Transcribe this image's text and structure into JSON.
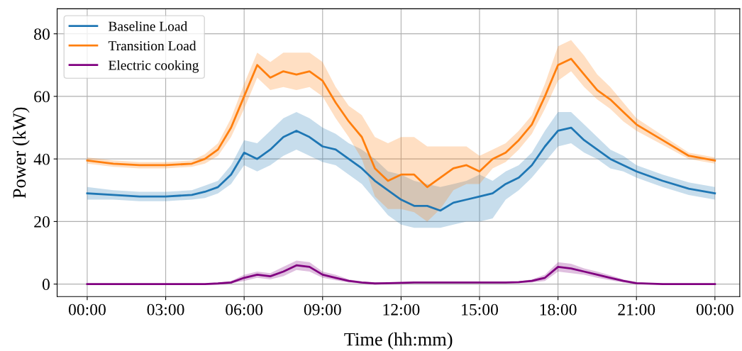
{
  "chart_data": {
    "type": "line",
    "xlabel": "Time (hh:mm)",
    "ylabel": "Power (kW)",
    "x": [
      0,
      1,
      2,
      3,
      4,
      4.5,
      5,
      5.5,
      6,
      6.5,
      7,
      7.5,
      8,
      8.5,
      9,
      9.5,
      10,
      10.5,
      11,
      11.5,
      12,
      12.5,
      13,
      13.5,
      14,
      14.5,
      15,
      15.5,
      16,
      16.5,
      17,
      17.5,
      18,
      18.5,
      19,
      19.5,
      20,
      20.5,
      21,
      22,
      23,
      24
    ],
    "series": [
      {
        "name": "Baseline Load",
        "color": "#1f77b4",
        "values": [
          29,
          28.5,
          28,
          28,
          28.5,
          29.5,
          31,
          35,
          42,
          40,
          43,
          47,
          49,
          47,
          44,
          43,
          40,
          37,
          33,
          30,
          27,
          25,
          25,
          23.5,
          26,
          27,
          28,
          29,
          32,
          34,
          38,
          44,
          49,
          50,
          46,
          43,
          40,
          38,
          36,
          33,
          30.5,
          29
        ],
        "lower": [
          27,
          27,
          26.5,
          26.5,
          27,
          27.5,
          29,
          32,
          38,
          36,
          38,
          41,
          43,
          41,
          39,
          38,
          35,
          32,
          27,
          22,
          19,
          18,
          18,
          18,
          19,
          20,
          20,
          21,
          27,
          30,
          34,
          39,
          44,
          45,
          42,
          40,
          37,
          36,
          34,
          31,
          28.5,
          27
        ],
        "upper": [
          31,
          30,
          29.5,
          29.5,
          30,
          31.5,
          33,
          38,
          46,
          45,
          49,
          53,
          55,
          53,
          50,
          48,
          45,
          43,
          40,
          36,
          35,
          33,
          32,
          31,
          32,
          33,
          35,
          33,
          36,
          38,
          42,
          49,
          55,
          55,
          51,
          47,
          43,
          41,
          38,
          35,
          32.5,
          31
        ]
      },
      {
        "name": "Transition Load",
        "color": "#ff7f0e",
        "values": [
          39.5,
          38.5,
          38,
          38,
          38.5,
          40,
          43,
          50,
          60,
          70,
          66,
          68,
          67,
          68,
          65,
          58,
          52,
          47,
          37,
          33,
          35,
          35,
          31,
          34,
          37,
          38,
          36,
          40,
          42,
          46,
          51,
          60,
          70,
          72,
          67,
          62,
          59,
          55,
          51,
          46,
          41,
          39.5
        ],
        "lower": [
          38.5,
          37.5,
          37,
          37,
          37.5,
          38.5,
          41,
          47,
          56,
          66,
          62,
          63,
          62,
          63,
          60,
          53,
          47,
          40,
          28,
          24,
          24,
          23,
          20,
          24,
          30,
          32,
          32,
          37,
          39,
          43,
          48,
          56,
          65,
          68,
          63,
          59,
          56,
          52,
          49,
          44.5,
          40,
          38.5
        ],
        "upper": [
          40.5,
          39.5,
          39,
          39,
          39.5,
          41.5,
          45,
          53,
          64,
          74,
          71,
          74,
          74,
          74,
          71,
          63,
          57,
          54,
          47,
          45,
          47,
          47,
          44,
          44,
          44,
          44,
          41,
          43,
          45,
          49,
          54,
          64,
          76,
          78,
          73,
          67,
          63,
          58,
          53,
          47.5,
          42,
          40.5
        ]
      },
      {
        "name": "Electric cooking",
        "color": "#800080",
        "values": [
          0,
          0,
          0,
          0,
          0,
          0,
          0.2,
          0.5,
          2,
          3,
          2.5,
          4,
          6,
          5.5,
          3,
          2,
          1,
          0.5,
          0.2,
          0.3,
          0.4,
          0.5,
          0.5,
          0.5,
          0.5,
          0.5,
          0.5,
          0.5,
          0.5,
          0.6,
          1,
          2,
          5.5,
          5,
          4,
          3,
          2,
          1,
          0.3,
          0,
          0,
          0
        ],
        "lower": [
          0,
          0,
          0,
          0,
          0,
          0,
          0,
          0.2,
          1,
          2,
          1.5,
          2.5,
          4.5,
          4,
          2,
          1.2,
          0.5,
          0.2,
          0,
          0.1,
          0.2,
          0.3,
          0.3,
          0.3,
          0.3,
          0.3,
          0.3,
          0.3,
          0.3,
          0.3,
          0.5,
          1,
          4,
          3.5,
          3,
          2,
          1.2,
          0.5,
          0,
          0,
          0,
          0
        ],
        "upper": [
          0,
          0,
          0,
          0,
          0,
          0,
          0.4,
          1,
          3,
          4,
          3.5,
          5.5,
          7.5,
          7,
          4,
          3,
          1.5,
          0.8,
          0.4,
          0.5,
          0.6,
          0.7,
          0.7,
          0.7,
          0.7,
          0.7,
          0.7,
          0.7,
          0.7,
          0.9,
          1.5,
          3,
          7,
          6.5,
          5,
          4,
          2.8,
          1.5,
          0.6,
          0,
          0,
          0
        ]
      }
    ],
    "xlim": [
      -1.15,
      24.95
    ],
    "ylim": [
      -4,
      88
    ],
    "xticks": [
      {
        "value": 0,
        "label": "00:00"
      },
      {
        "value": 3,
        "label": "03:00"
      },
      {
        "value": 6,
        "label": "06:00"
      },
      {
        "value": 9,
        "label": "09:00"
      },
      {
        "value": 12,
        "label": "12:00"
      },
      {
        "value": 15,
        "label": "15:00"
      },
      {
        "value": 18,
        "label": "18:00"
      },
      {
        "value": 21,
        "label": "21:00"
      },
      {
        "value": 24,
        "label": "00:00"
      }
    ],
    "yticks": [
      0,
      20,
      40,
      60,
      80
    ],
    "grid": true,
    "legend": "top left"
  }
}
